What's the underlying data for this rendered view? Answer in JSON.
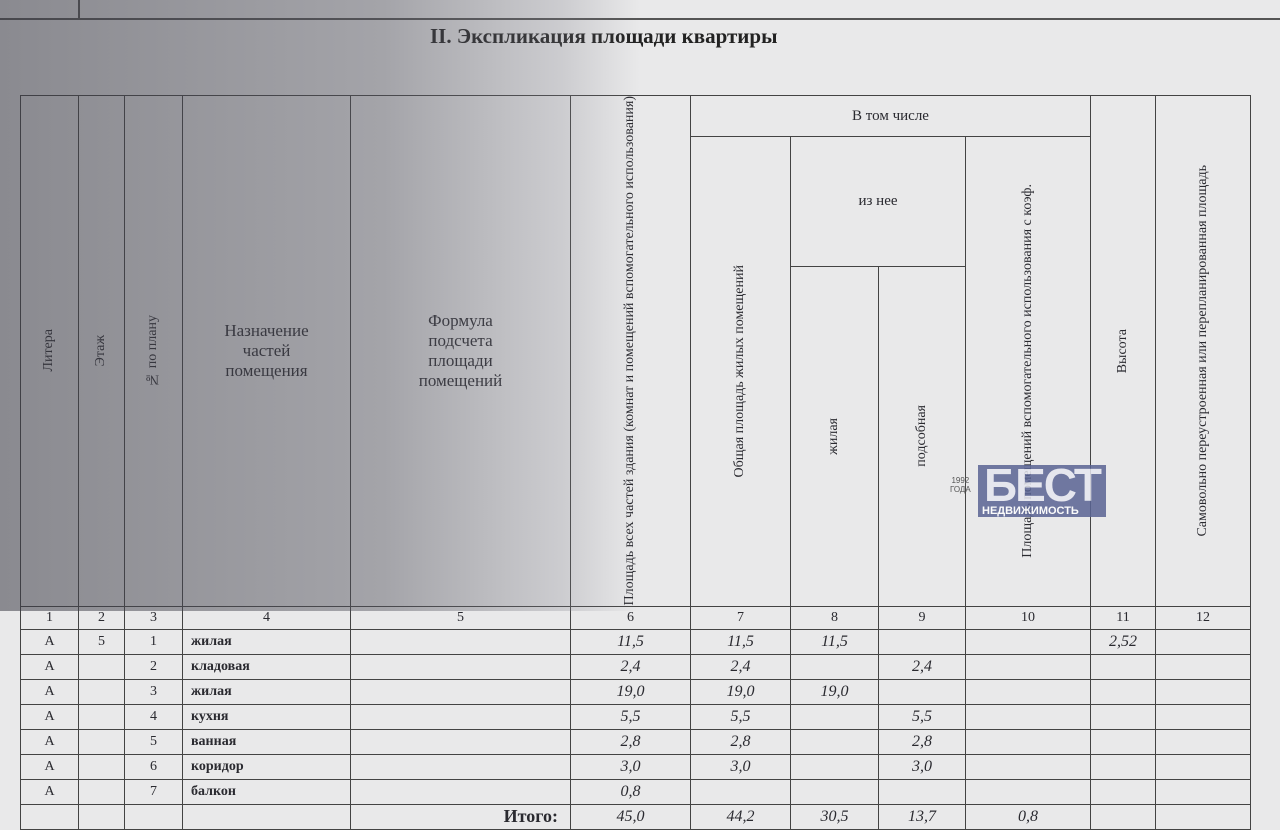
{
  "title": "II. Экспликация площади квартиры",
  "headers": {
    "c1": "Литера",
    "c2": "Этаж",
    "c3": "№ по плану",
    "c4": "Назначение частей помещения",
    "c5": "Формула подсчета площади помещений",
    "c6": "Площадь всех частей здания (комнат и помещений вспомогательного использования)",
    "group": "В том числе",
    "c7": "Общая площадь жилых помещений",
    "subgroup": "из нее",
    "c8": "жилая",
    "c9": "подсобная",
    "c10": "Площадь помещений вспомогательного использования с коэф.",
    "c11": "Высота",
    "c12": "Самовольно переустроенная или перепланированная площадь"
  },
  "numbers": [
    "1",
    "2",
    "3",
    "4",
    "5",
    "6",
    "7",
    "8",
    "9",
    "10",
    "11",
    "12"
  ],
  "rows": [
    [
      "А",
      "5",
      "1",
      "жилая",
      "",
      "11,5",
      "11,5",
      "11,5",
      "",
      "",
      "2,52",
      ""
    ],
    [
      "А",
      "",
      "2",
      "кладовая",
      "",
      "2,4",
      "2,4",
      "",
      "2,4",
      "",
      "",
      ""
    ],
    [
      "А",
      "",
      "3",
      "жилая",
      "",
      "19,0",
      "19,0",
      "19,0",
      "",
      "",
      "",
      ""
    ],
    [
      "А",
      "",
      "4",
      "кухня",
      "",
      "5,5",
      "5,5",
      "",
      "5,5",
      "",
      "",
      ""
    ],
    [
      "А",
      "",
      "5",
      "ванная",
      "",
      "2,8",
      "2,8",
      "",
      "2,8",
      "",
      "",
      ""
    ],
    [
      "А",
      "",
      "6",
      "коридор",
      "",
      "3,0",
      "3,0",
      "",
      "3,0",
      "",
      "",
      ""
    ],
    [
      "А",
      "",
      "7",
      "балкон",
      "",
      "0,8",
      "",
      "",
      "",
      "",
      "",
      ""
    ]
  ],
  "total": {
    "label": "Итого:",
    "c6": "45,0",
    "c7": "44,2",
    "c8": "30,5",
    "c9": "13,7",
    "c10": "0,8"
  },
  "watermark": {
    "brand": "БЕСТ",
    "sub": "НЕДВИЖИМОСТЬ",
    "year": "1992",
    "year_label": "ГОДА"
  }
}
